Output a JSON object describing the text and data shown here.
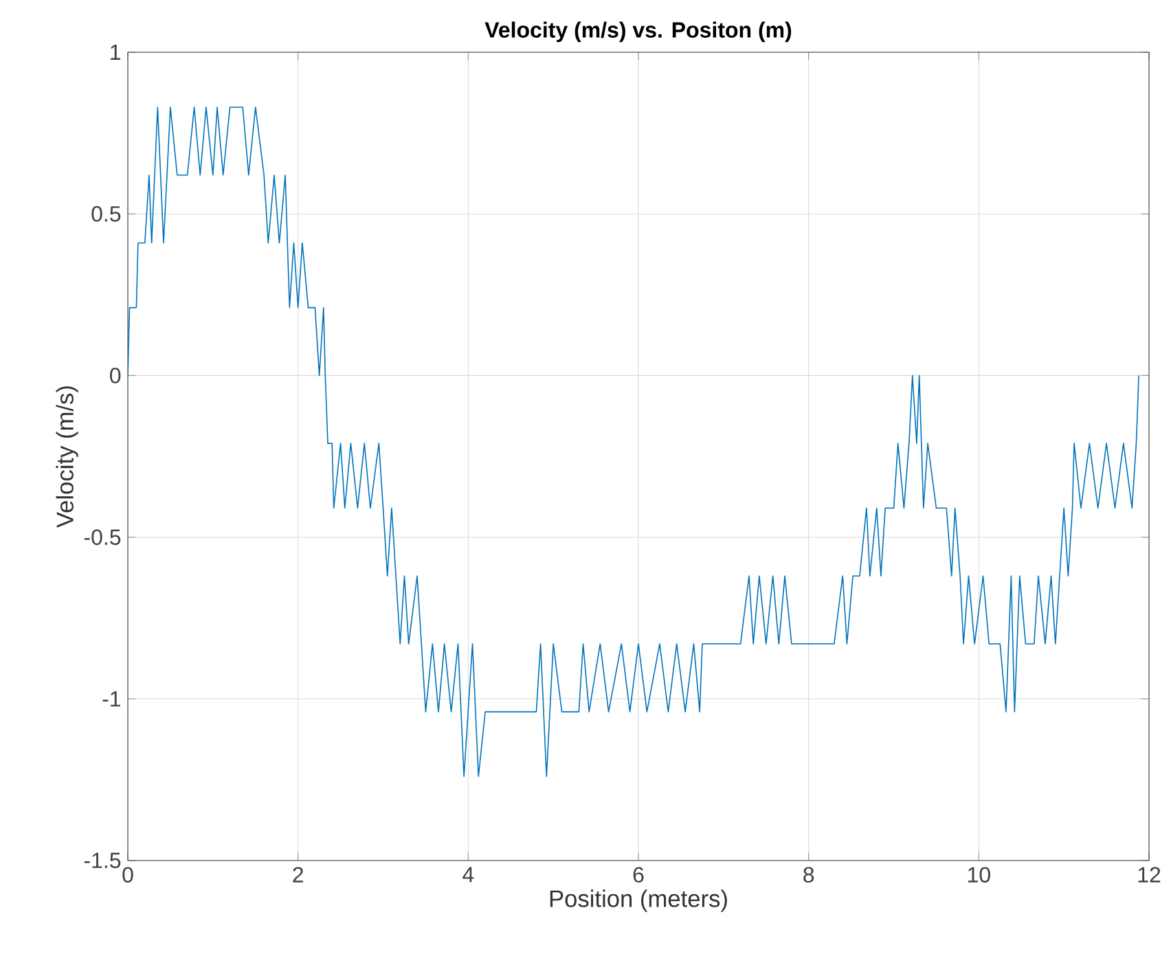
{
  "chart_data": {
    "type": "line",
    "title": "Velocity (m/s) vs. Positon (m)",
    "xlabel": "Position (meters)",
    "ylabel": "Velocity (m/s)",
    "xlim": [
      0,
      12
    ],
    "ylim": [
      -1.5,
      1
    ],
    "xticks": [
      0,
      2,
      4,
      6,
      8,
      10,
      12
    ],
    "yticks": [
      -1.5,
      -1,
      -0.5,
      0,
      0.5,
      1
    ],
    "grid": true,
    "marker": "none",
    "line_style": "solid",
    "series": [
      {
        "color": "#0072bd",
        "x": [
          0,
          0.02,
          0.1,
          0.12,
          0.2,
          0.25,
          0.28,
          0.35,
          0.42,
          0.5,
          0.58,
          0.7,
          0.78,
          0.85,
          0.92,
          1.0,
          1.05,
          1.12,
          1.2,
          1.35,
          1.42,
          1.5,
          1.6,
          1.65,
          1.72,
          1.78,
          1.85,
          1.9,
          1.95,
          2.0,
          2.05,
          2.12,
          2.2,
          2.25,
          2.3,
          2.32,
          2.35,
          2.4,
          2.42,
          2.5,
          2.55,
          2.62,
          2.7,
          2.78,
          2.85,
          2.95,
          3.0,
          3.05,
          3.1,
          3.15,
          3.2,
          3.25,
          3.3,
          3.4,
          3.5,
          3.58,
          3.65,
          3.72,
          3.8,
          3.88,
          3.95,
          4.05,
          4.12,
          4.2,
          4.8,
          4.85,
          4.92,
          5.0,
          5.1,
          5.3,
          5.35,
          5.42,
          5.55,
          5.65,
          5.8,
          5.9,
          6.0,
          6.1,
          6.25,
          6.35,
          6.45,
          6.55,
          6.65,
          6.72,
          6.75,
          7.2,
          7.3,
          7.35,
          7.42,
          7.5,
          7.58,
          7.65,
          7.72,
          7.8,
          8.3,
          8.4,
          8.45,
          8.52,
          8.6,
          8.68,
          8.72,
          8.8,
          8.85,
          8.9,
          9.0,
          9.05,
          9.12,
          9.18,
          9.22,
          9.27,
          9.3,
          9.35,
          9.4,
          9.5,
          9.62,
          9.68,
          9.72,
          9.78,
          9.82,
          9.88,
          9.95,
          10.05,
          10.12,
          10.25,
          10.32,
          10.38,
          10.42,
          10.48,
          10.55,
          10.65,
          10.7,
          10.78,
          10.85,
          10.9,
          11.0,
          11.05,
          11.1,
          11.12,
          11.2,
          11.3,
          11.4,
          11.5,
          11.6,
          11.7,
          11.8,
          11.85,
          11.88
        ],
        "values": [
          0,
          0.21,
          0.21,
          0.41,
          0.41,
          0.62,
          0.41,
          0.83,
          0.41,
          0.83,
          0.62,
          0.62,
          0.83,
          0.62,
          0.83,
          0.62,
          0.83,
          0.62,
          0.83,
          0.83,
          0.62,
          0.83,
          0.62,
          0.41,
          0.62,
          0.41,
          0.62,
          0.21,
          0.41,
          0.21,
          0.41,
          0.21,
          0.21,
          0,
          0.21,
          0,
          -0.21,
          -0.21,
          -0.41,
          -0.21,
          -0.41,
          -0.21,
          -0.41,
          -0.21,
          -0.41,
          -0.21,
          -0.41,
          -0.62,
          -0.41,
          -0.62,
          -0.83,
          -0.62,
          -0.83,
          -0.62,
          -1.04,
          -0.83,
          -1.04,
          -0.83,
          -1.04,
          -0.83,
          -1.24,
          -0.83,
          -1.24,
          -1.04,
          -1.04,
          -0.83,
          -1.24,
          -0.83,
          -1.04,
          -1.04,
          -0.83,
          -1.04,
          -0.83,
          -1.04,
          -0.83,
          -1.04,
          -0.83,
          -1.04,
          -0.83,
          -1.04,
          -0.83,
          -1.04,
          -0.83,
          -1.04,
          -0.83,
          -0.83,
          -0.62,
          -0.83,
          -0.62,
          -0.83,
          -0.62,
          -0.83,
          -0.62,
          -0.83,
          -0.83,
          -0.62,
          -0.83,
          -0.62,
          -0.62,
          -0.41,
          -0.62,
          -0.41,
          -0.62,
          -0.41,
          -0.41,
          -0.21,
          -0.41,
          -0.21,
          0,
          -0.21,
          0,
          -0.41,
          -0.21,
          -0.41,
          -0.41,
          -0.62,
          -0.41,
          -0.62,
          -0.83,
          -0.62,
          -0.83,
          -0.62,
          -0.83,
          -0.83,
          -1.04,
          -0.62,
          -1.04,
          -0.62,
          -0.83,
          -0.83,
          -0.62,
          -0.83,
          -0.62,
          -0.83,
          -0.41,
          -0.62,
          -0.41,
          -0.21,
          -0.41,
          -0.21,
          -0.41,
          -0.21,
          -0.41,
          -0.21,
          -0.41,
          -0.21,
          0
        ]
      }
    ]
  }
}
